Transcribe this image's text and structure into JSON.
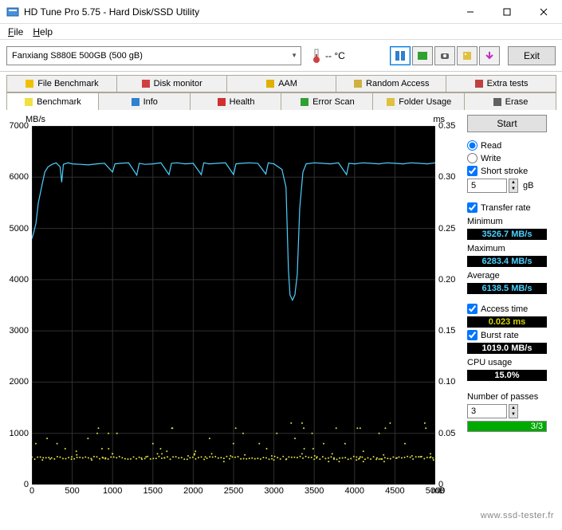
{
  "window": {
    "title": "HD Tune Pro 5.75 - Hard Disk/SSD Utility"
  },
  "menu": {
    "file": "File",
    "help": "Help"
  },
  "toolbar": {
    "drive": "Fanxiang S880E 500GB (500 gB)",
    "temp_value": "-- °C",
    "exit": "Exit"
  },
  "tabs_top": [
    {
      "label": "File Benchmark",
      "icon_color": "#f0c000"
    },
    {
      "label": "Disk monitor",
      "icon_color": "#d04040"
    },
    {
      "label": "AAM",
      "icon_color": "#e0b000"
    },
    {
      "label": "Random Access",
      "icon_color": "#d0b040"
    },
    {
      "label": "Extra tests",
      "icon_color": "#c04040"
    }
  ],
  "tabs_bottom": [
    {
      "label": "Benchmark",
      "icon_color": "#f0e040",
      "active": true
    },
    {
      "label": "Info",
      "icon_color": "#3080d0"
    },
    {
      "label": "Health",
      "icon_color": "#d03030"
    },
    {
      "label": "Error Scan",
      "icon_color": "#30a030"
    },
    {
      "label": "Folder Usage",
      "icon_color": "#e0c040"
    },
    {
      "label": "Erase",
      "icon_color": "#606060"
    }
  ],
  "chart": {
    "y_left_label": "MB/s",
    "y_right_label": "ms",
    "x_label": "mB",
    "y_left_ticks": [
      7000,
      6000,
      5000,
      4000,
      3000,
      2000,
      1000,
      0
    ],
    "y_left_max": 7000,
    "y_right_ticks": [
      "0.35",
      "0.30",
      "0.25",
      "0.20",
      "0.15",
      "0.10",
      "0.05",
      "0"
    ],
    "x_ticks": [
      0,
      500,
      1000,
      1500,
      2000,
      2500,
      3000,
      3500,
      4000,
      4500,
      5000
    ],
    "x_max": 5000,
    "grid_color": "#303030",
    "line_color": "#4dd0ff",
    "dot_color": "#e0e040",
    "transfer_data": [
      [
        0,
        4800
      ],
      [
        20,
        4900
      ],
      [
        50,
        5100
      ],
      [
        80,
        5500
      ],
      [
        120,
        5800
      ],
      [
        160,
        6100
      ],
      [
        200,
        6200
      ],
      [
        250,
        6250
      ],
      [
        300,
        6280
      ],
      [
        350,
        6200
      ],
      [
        370,
        5900
      ],
      [
        390,
        6250
      ],
      [
        450,
        6280
      ],
      [
        500,
        6260
      ],
      [
        600,
        6250
      ],
      [
        700,
        6240
      ],
      [
        800,
        6260
      ],
      [
        900,
        6270
      ],
      [
        1000,
        6100
      ],
      [
        1030,
        6260
      ],
      [
        1100,
        6270
      ],
      [
        1200,
        6280
      ],
      [
        1300,
        6040
      ],
      [
        1330,
        6270
      ],
      [
        1400,
        6250
      ],
      [
        1500,
        6260
      ],
      [
        1600,
        6280
      ],
      [
        1700,
        6050
      ],
      [
        1730,
        6270
      ],
      [
        1800,
        6280
      ],
      [
        1900,
        6260
      ],
      [
        2000,
        6270
      ],
      [
        2100,
        6050
      ],
      [
        2130,
        6280
      ],
      [
        2200,
        6260
      ],
      [
        2300,
        6270
      ],
      [
        2400,
        6280
      ],
      [
        2500,
        6050
      ],
      [
        2530,
        6260
      ],
      [
        2600,
        6270
      ],
      [
        2700,
        6280
      ],
      [
        2800,
        6270
      ],
      [
        2900,
        6060
      ],
      [
        2930,
        6280
      ],
      [
        3000,
        6260
      ],
      [
        3100,
        6150
      ],
      [
        3150,
        5800
      ],
      [
        3180,
        4200
      ],
      [
        3200,
        3700
      ],
      [
        3230,
        3600
      ],
      [
        3260,
        3700
      ],
      [
        3290,
        4100
      ],
      [
        3320,
        5400
      ],
      [
        3360,
        6100
      ],
      [
        3400,
        6260
      ],
      [
        3500,
        6280
      ],
      [
        3600,
        6270
      ],
      [
        3700,
        6260
      ],
      [
        3800,
        6280
      ],
      [
        3900,
        6050
      ],
      [
        3930,
        6270
      ],
      [
        4000,
        6260
      ],
      [
        4100,
        6280
      ],
      [
        4200,
        6270
      ],
      [
        4300,
        6260
      ],
      [
        4400,
        6280
      ],
      [
        4500,
        6270
      ],
      [
        4600,
        6260
      ],
      [
        4700,
        6280
      ],
      [
        4800,
        6270
      ],
      [
        4900,
        6260
      ],
      [
        5000,
        6280
      ]
    ],
    "access_baseline": 520,
    "access_scatter_y": [
      450,
      480,
      500,
      520,
      540,
      560,
      580,
      600,
      650,
      700,
      800,
      900,
      1000,
      1100,
      1200
    ]
  },
  "panel": {
    "start": "Start",
    "read": "Read",
    "write": "Write",
    "short_stroke": "Short stroke",
    "stroke_value": "5",
    "stroke_unit": "gB",
    "transfer_rate": "Transfer rate",
    "min_label": "Minimum",
    "min_val": "3526.7 MB/s",
    "max_label": "Maximum",
    "max_val": "6283.4 MB/s",
    "avg_label": "Average",
    "avg_val": "6138.5 MB/s",
    "access_label": "Access time",
    "access_val": "0.023 ms",
    "burst_label": "Burst rate",
    "burst_val": "1019.0 MB/s",
    "cpu_label": "CPU usage",
    "cpu_val": "15.0%",
    "passes_label": "Number of passes",
    "passes_val": "3",
    "progress": "3/3"
  },
  "watermark": "www.ssd-tester.fr"
}
